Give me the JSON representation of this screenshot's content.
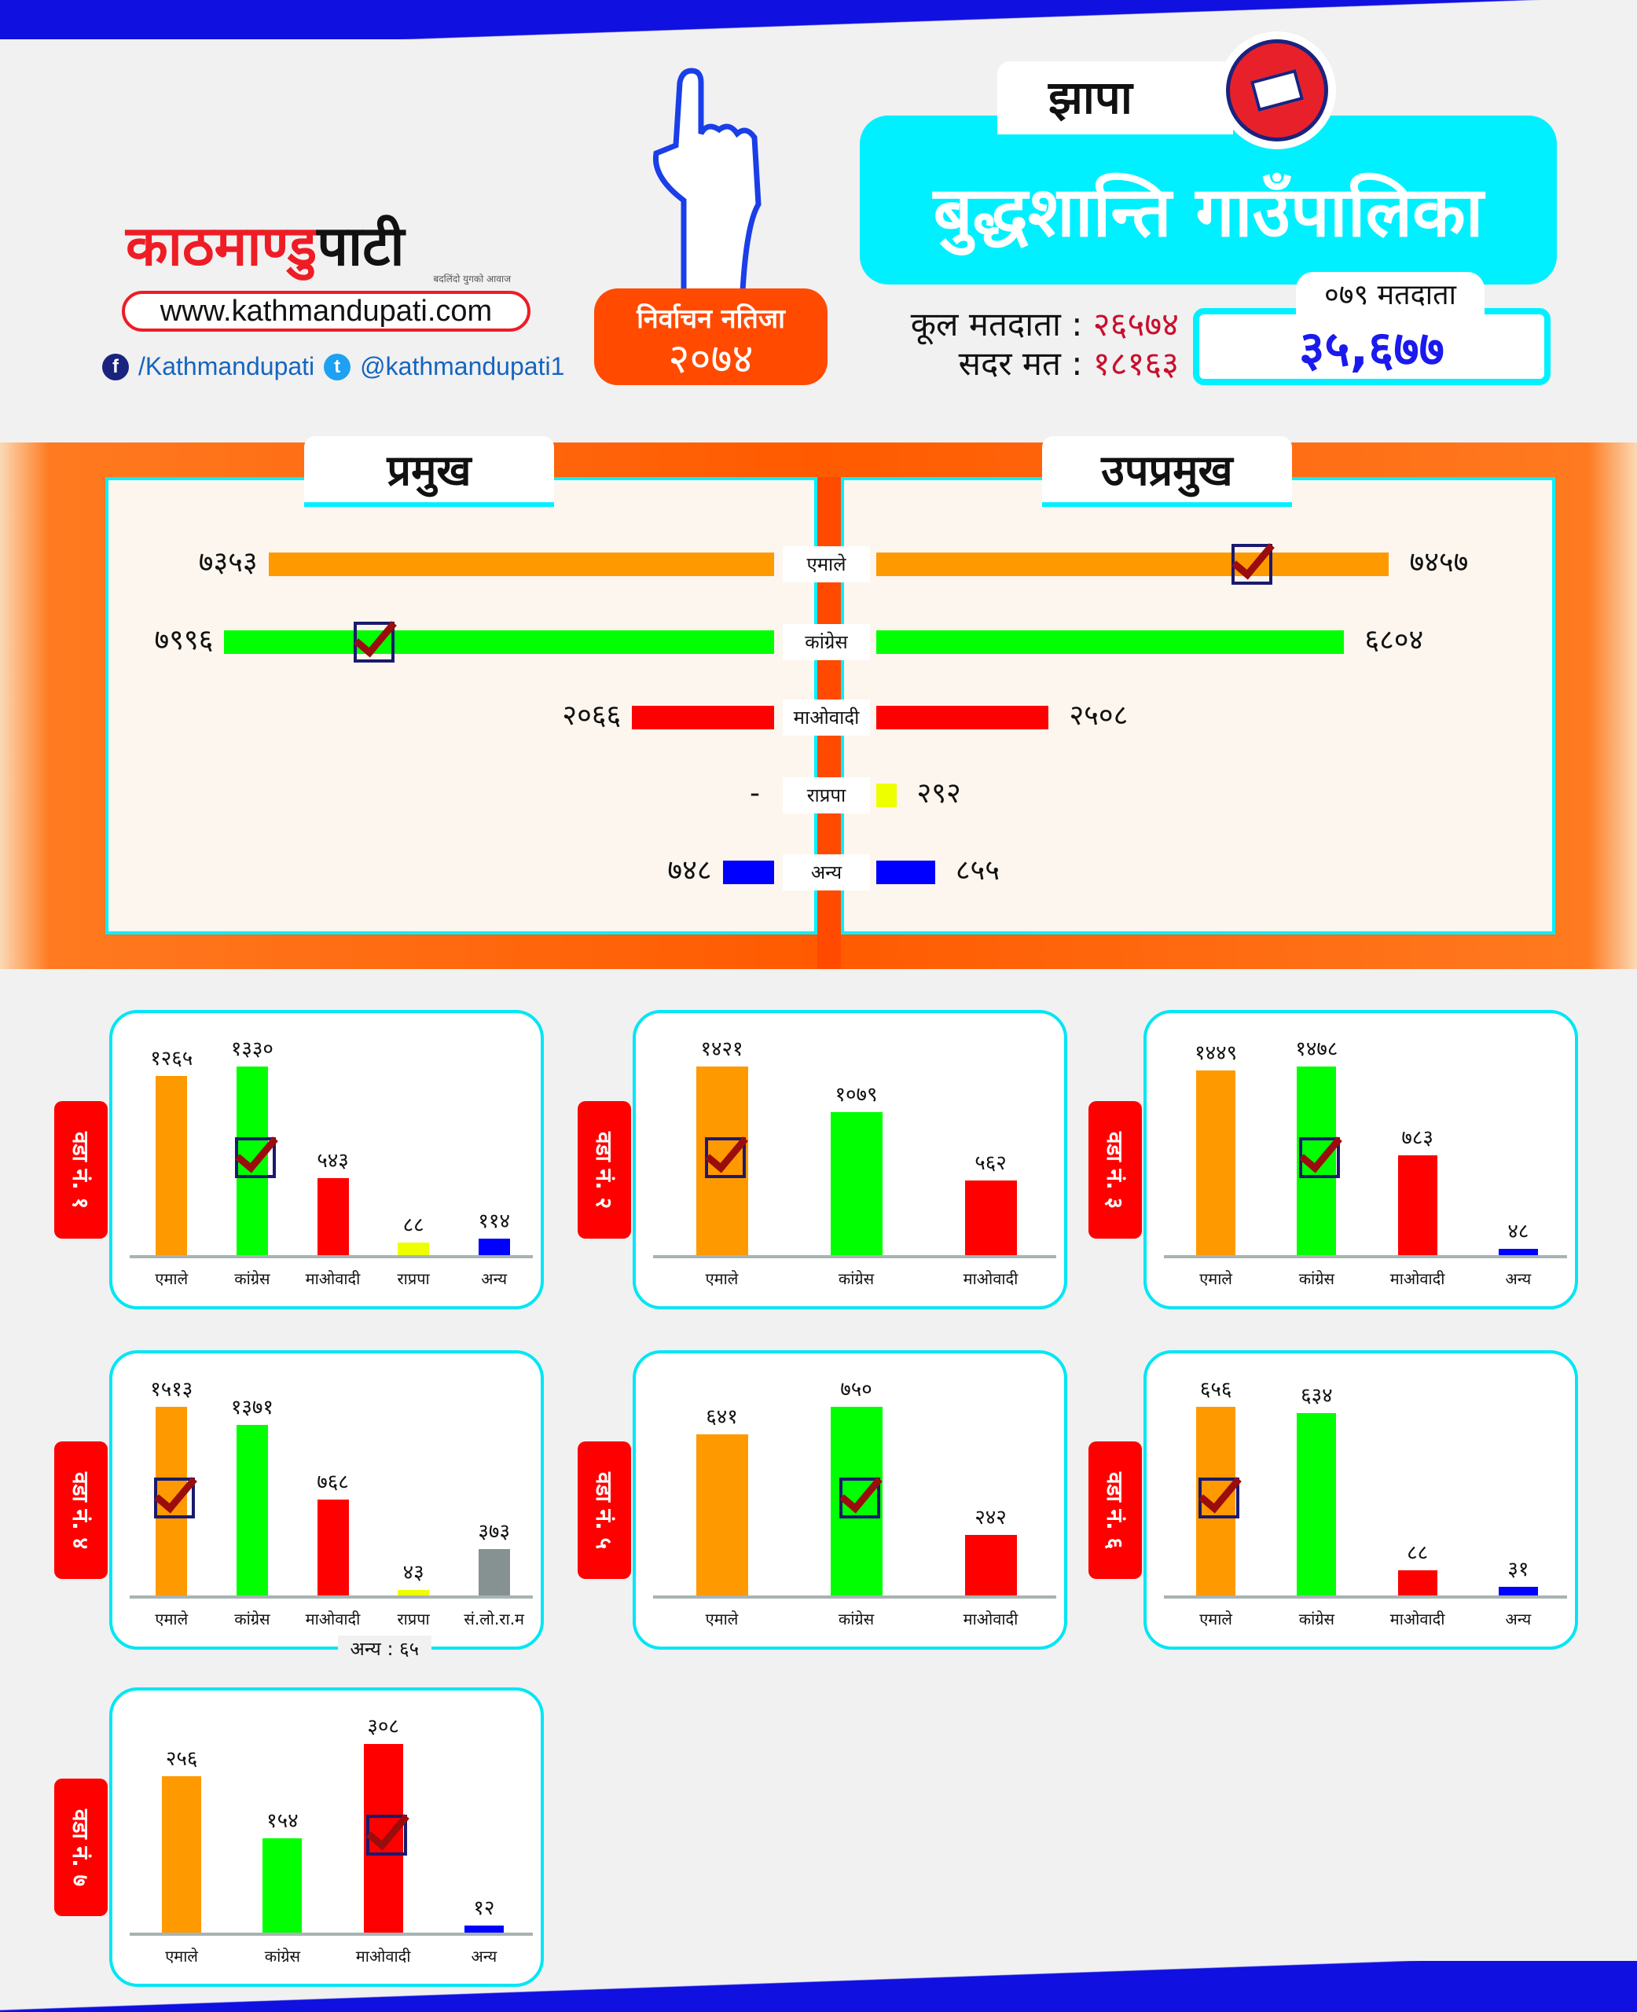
{
  "brand": {
    "logo_red": "काठमाण्डु",
    "logo_black": "पाटी",
    "tagline": "बदलिंदो युगको आवाज",
    "url": "www.kathmandupati.com",
    "facebook": "/Kathmandupati",
    "twitter": "@kathmandupati1"
  },
  "badge": {
    "line1": "निर्वाचन नतिजा",
    "line2": "२०७४"
  },
  "district": "झापा",
  "municipality": "बुद्धशान्ति गाउँपालिका",
  "stats": {
    "total_voters_label": "कूल मतदाता :",
    "total_voters": "२६५७४",
    "valid_votes_label": "सदर मत :",
    "valid_votes": "१८१६३"
  },
  "voters_079": {
    "label": "०७९ मतदाता",
    "value": "३५,६७७"
  },
  "colors": {
    "एमाले": "#ff9900",
    "कांग्रेस": "#00ff00",
    "माओवादी": "#ff0000",
    "राप्रपा": "#eeff00",
    "अन्य": "#0000ff",
    "सं.लो.रा.म": "#869191",
    "accent": "#00f0ff",
    "band": "#ff5500"
  },
  "main": {
    "left_title": "प्रमुख",
    "right_title": "उपप्रमुख",
    "rows": [
      {
        "party": "एमाले",
        "pramukh": 7353,
        "pramukh_label": "७३५३",
        "upapramukh": 7457,
        "upapramukh_label": "७४५७",
        "winner": "upapramukh"
      },
      {
        "party": "कांग्रेस",
        "pramukh": 7996,
        "pramukh_label": "७९९६",
        "upapramukh": 6804,
        "upapramukh_label": "६८०४",
        "winner": "pramukh"
      },
      {
        "party": "माओवादी",
        "pramukh": 2066,
        "pramukh_label": "२०६६",
        "upapramukh": 2508,
        "upapramukh_label": "२५०८"
      },
      {
        "party": "राप्रपा",
        "pramukh": 0,
        "pramukh_label": "-",
        "upapramukh": 292,
        "upapramukh_label": "२९२"
      },
      {
        "party": "अन्य",
        "pramukh": 748,
        "pramukh_label": "७४८",
        "upapramukh": 855,
        "upapramukh_label": "८५५"
      }
    ]
  },
  "chart_data": [
    {
      "type": "bar",
      "title": "वडा नं. १",
      "categories": [
        "एमाले",
        "कांग्रेस",
        "माओवादी",
        "राप्रपा",
        "अन्य"
      ],
      "values": [
        1265,
        1330,
        543,
        88,
        114
      ],
      "labels": [
        "१२६५",
        "१३३०",
        "५४३",
        "८८",
        "११४"
      ],
      "winner": "कांग्रेस"
    },
    {
      "type": "bar",
      "title": "वडा नं. २",
      "categories": [
        "एमाले",
        "कांग्रेस",
        "माओवादी"
      ],
      "values": [
        1421,
        1079,
        562
      ],
      "labels": [
        "१४२१",
        "१०७९",
        "५६२"
      ],
      "winner": "एमाले"
    },
    {
      "type": "bar",
      "title": "वडा नं. ३",
      "categories": [
        "एमाले",
        "कांग्रेस",
        "माओवादी",
        "अन्य"
      ],
      "values": [
        1449,
        1478,
        783,
        48
      ],
      "labels": [
        "१४४९",
        "१४७८",
        "७८३",
        "४८"
      ],
      "winner": "कांग्रेस"
    },
    {
      "type": "bar",
      "title": "वडा नं. ४",
      "categories": [
        "एमाले",
        "कांग्रेस",
        "माओवादी",
        "राप्रपा",
        "सं.लो.रा.म"
      ],
      "values": [
        1513,
        1371,
        768,
        43,
        373
      ],
      "labels": [
        "१५१३",
        "१३७१",
        "७६८",
        "४३",
        "३७३"
      ],
      "winner": "एमाले",
      "note": "अन्य : ६५"
    },
    {
      "type": "bar",
      "title": "वडा नं. ५",
      "categories": [
        "एमाले",
        "कांग्रेस",
        "माओवादी"
      ],
      "values": [
        641,
        750,
        242
      ],
      "labels": [
        "६४१",
        "७५०",
        "२४२"
      ],
      "winner": "कांग्रेस"
    },
    {
      "type": "bar",
      "title": "वडा नं. ६",
      "categories": [
        "एमाले",
        "कांग्रेस",
        "माओवादी",
        "अन्य"
      ],
      "values": [
        656,
        634,
        88,
        31
      ],
      "labels": [
        "६५६",
        "६३४",
        "८८",
        "३१"
      ],
      "winner": "एमाले"
    },
    {
      "type": "bar",
      "title": "वडा नं. ७",
      "categories": [
        "एमाले",
        "कांग्रेस",
        "माओवादी",
        "अन्य"
      ],
      "values": [
        256,
        154,
        308,
        12
      ],
      "labels": [
        "२५६",
        "१५४",
        "३०८",
        "१२"
      ],
      "winner": "माओवादी"
    }
  ]
}
